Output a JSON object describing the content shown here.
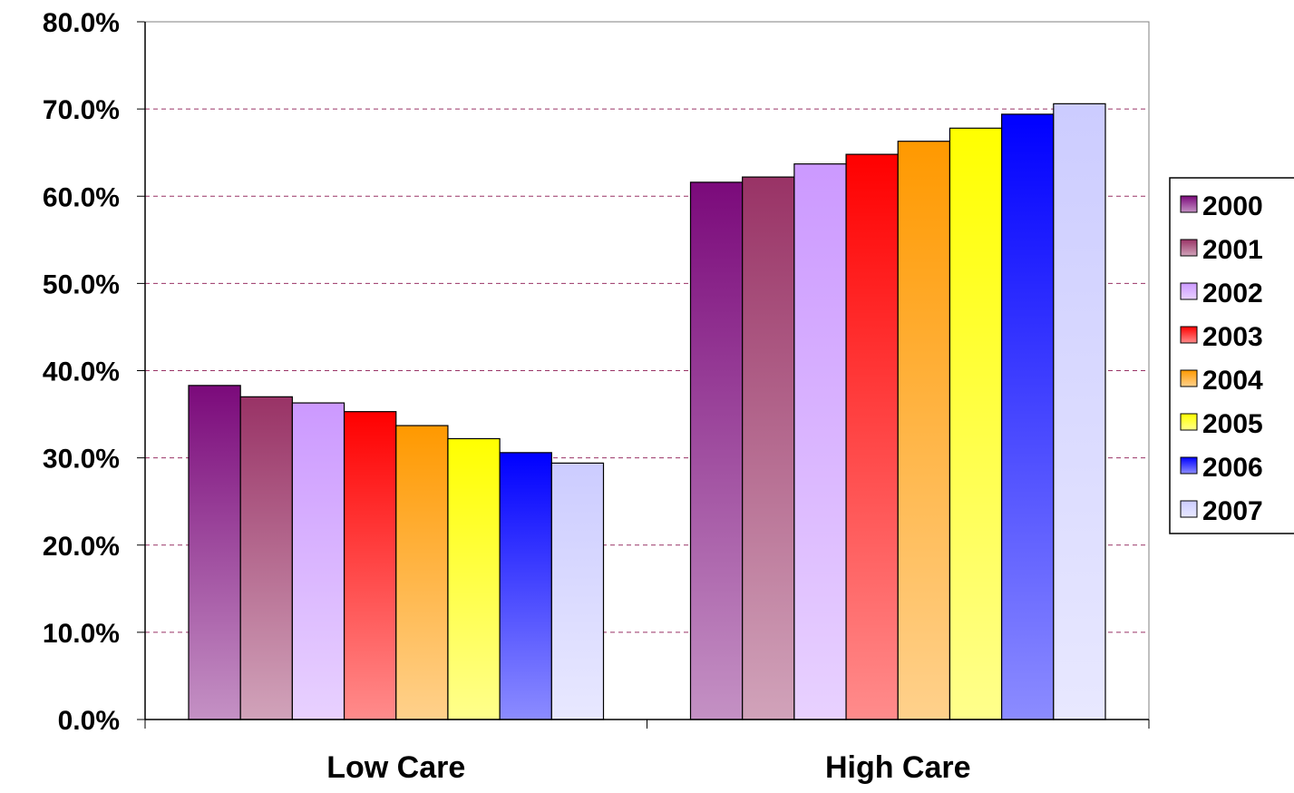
{
  "chart_data": {
    "type": "bar",
    "categories": [
      "Low Care",
      "High Care"
    ],
    "series": [
      {
        "name": "2000",
        "values": [
          38.3,
          61.6
        ],
        "color": "#7B0A7B"
      },
      {
        "name": "2001",
        "values": [
          37.0,
          62.2
        ],
        "color": "#993366"
      },
      {
        "name": "2002",
        "values": [
          36.3,
          63.7
        ],
        "color": "#CC99FF"
      },
      {
        "name": "2003",
        "values": [
          35.3,
          64.8
        ],
        "color": "#FF0000"
      },
      {
        "name": "2004",
        "values": [
          33.7,
          66.3
        ],
        "color": "#FF9900"
      },
      {
        "name": "2005",
        "values": [
          32.2,
          67.8
        ],
        "color": "#FFFF00"
      },
      {
        "name": "2006",
        "values": [
          30.6,
          69.4
        ],
        "color": "#0000FF"
      },
      {
        "name": "2007",
        "values": [
          29.4,
          70.6
        ],
        "color": "#CCCCFF"
      }
    ],
    "ylim": [
      0,
      80
    ],
    "yticks": [
      "0.0%",
      "10.0%",
      "20.0%",
      "30.0%",
      "40.0%",
      "50.0%",
      "60.0%",
      "70.0%",
      "80.0%"
    ],
    "grid": true,
    "gridline_color": "#993366",
    "legend_position": "right",
    "title": "",
    "xlabel": "",
    "ylabel": ""
  }
}
